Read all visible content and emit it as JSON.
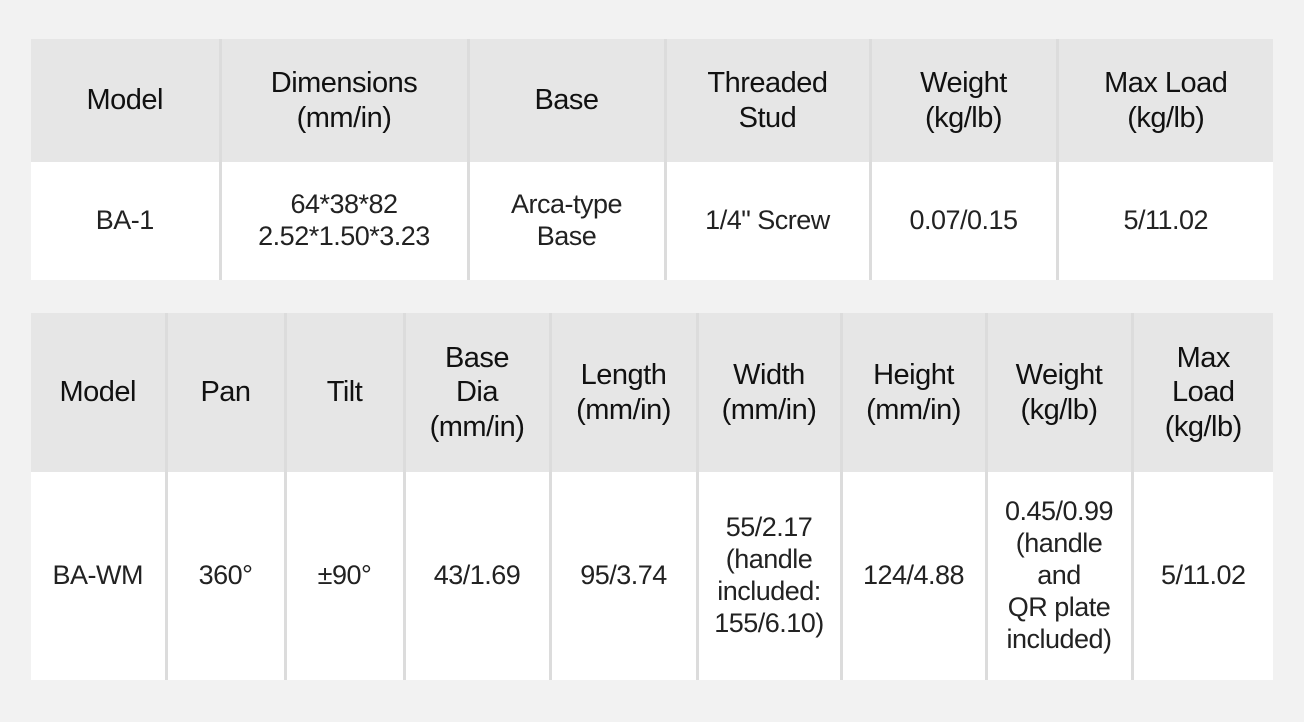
{
  "table1": {
    "headers": [
      "Model",
      "Dimensions\n(mm/in)",
      "Base",
      "Threaded\nStud",
      "Weight\n(kg/lb)",
      "Max Load\n(kg/lb)"
    ],
    "rows": [
      [
        "BA-1",
        "64*38*82\n2.52*1.50*3.23",
        "Arca-type\nBase",
        "1/4\" Screw",
        "0.07/0.15",
        "5/11.02"
      ]
    ]
  },
  "table2": {
    "headers": [
      "Model",
      "Pan",
      "Tilt",
      "Base\nDia\n(mm/in)",
      "Length\n(mm/in)",
      "Width\n(mm/in)",
      "Height\n(mm/in)",
      "Weight\n(kg/lb)",
      "Max\nLoad\n(kg/lb)"
    ],
    "rows": [
      [
        "BA-WM",
        "360°",
        "±90°",
        "43/1.69",
        "95/3.74",
        "55/2.17\n(handle\nincluded:\n155/6.10)",
        "124/4.88",
        "0.45/0.99\n(handle\nand\nQR plate\nincluded)",
        "5/11.02"
      ]
    ]
  }
}
